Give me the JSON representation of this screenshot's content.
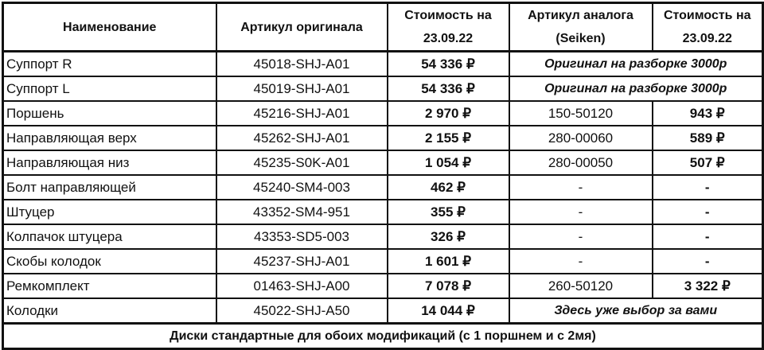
{
  "headers": [
    "Наименование",
    "Артикул оригинала",
    "Стоимость на 23.09.22",
    "Артикул аналога (Seiken)",
    "Стоимость на 23.09.22"
  ],
  "rows": [
    {
      "name": "Суппорт R",
      "oem": "45018-SHJ-A01",
      "price": "54 336 ₽",
      "note": "Оригинал на разборке 3000р"
    },
    {
      "name": "Суппорт L",
      "oem": "45019-SHJ-A01",
      "price": "54 336 ₽",
      "note": "Оригинал на разборке 3000р"
    },
    {
      "name": "Поршень",
      "oem": "45216-SHJ-A01",
      "price": "2 970 ₽",
      "analog": "150-50120",
      "analog_price": "943 ₽"
    },
    {
      "name": "Направляющая верх",
      "oem": "45262-SHJ-A01",
      "price": "2 155 ₽",
      "analog": "280-00060",
      "analog_price": "589 ₽"
    },
    {
      "name": "Направляющая низ",
      "oem": "45235-S0K-A01",
      "price": "1 054 ₽",
      "analog": "280-00050",
      "analog_price": "507 ₽"
    },
    {
      "name": "Болт направляющей",
      "oem": "45240-SM4-003",
      "price": "462 ₽",
      "analog": "-",
      "analog_price": "-"
    },
    {
      "name": "Штуцер",
      "oem": "43352-SM4-951",
      "price": "355 ₽",
      "analog": "-",
      "analog_price": "-"
    },
    {
      "name": "Колпачок штуцера",
      "oem": "43353-SD5-003",
      "price": "326 ₽",
      "analog": "-",
      "analog_price": "-"
    },
    {
      "name": "Скобы колодок",
      "oem": "45237-SHJ-A01",
      "price": "1 601 ₽",
      "analog": "-",
      "analog_price": "-"
    },
    {
      "name": "Ремкомплект",
      "oem": "01463-SHJ-A00",
      "price": "7 078 ₽",
      "analog": "260-50120",
      "analog_price": "3 322 ₽"
    },
    {
      "name": "Колодки",
      "oem": "45022-SHJ-A50",
      "price": "14 044 ₽",
      "note": "Здесь уже выбор за вами"
    }
  ],
  "footer": "Диски стандартные для обоих модификаций (с 1 поршнем и с 2мя)"
}
